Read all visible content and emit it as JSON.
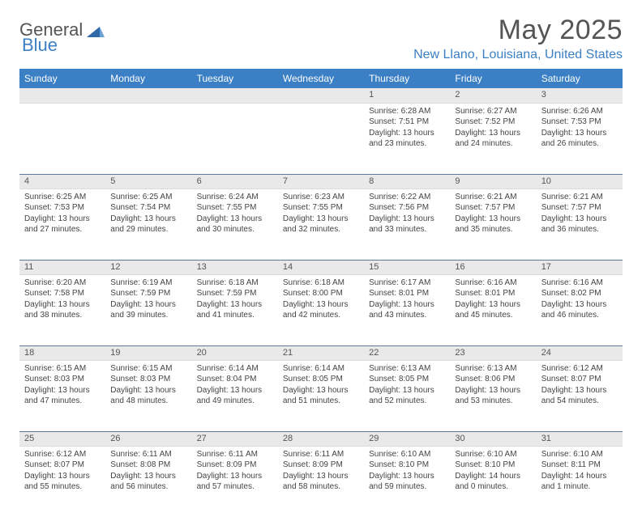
{
  "logo": {
    "text1": "General",
    "text2": "Blue"
  },
  "title": "May 2025",
  "location": "New Llano, Louisiana, United States",
  "colors": {
    "brand_blue": "#3b7fc4",
    "header_bg": "#3b7fc4",
    "header_text": "#ffffff",
    "daynum_bg": "#e9e9e9",
    "row_divider": "#5a7aa0",
    "body_text": "#444444",
    "title_text": "#555555"
  },
  "typography": {
    "title_fontsize": 34,
    "location_fontsize": 16,
    "header_fontsize": 12,
    "daynum_fontsize": 11,
    "cell_fontsize": 10
  },
  "weekdays": [
    "Sunday",
    "Monday",
    "Tuesday",
    "Wednesday",
    "Thursday",
    "Friday",
    "Saturday"
  ],
  "weeks": [
    [
      null,
      null,
      null,
      null,
      {
        "n": "1",
        "sr": "Sunrise: 6:28 AM",
        "ss": "Sunset: 7:51 PM",
        "dl": "Daylight: 13 hours and 23 minutes."
      },
      {
        "n": "2",
        "sr": "Sunrise: 6:27 AM",
        "ss": "Sunset: 7:52 PM",
        "dl": "Daylight: 13 hours and 24 minutes."
      },
      {
        "n": "3",
        "sr": "Sunrise: 6:26 AM",
        "ss": "Sunset: 7:53 PM",
        "dl": "Daylight: 13 hours and 26 minutes."
      }
    ],
    [
      {
        "n": "4",
        "sr": "Sunrise: 6:25 AM",
        "ss": "Sunset: 7:53 PM",
        "dl": "Daylight: 13 hours and 27 minutes."
      },
      {
        "n": "5",
        "sr": "Sunrise: 6:25 AM",
        "ss": "Sunset: 7:54 PM",
        "dl": "Daylight: 13 hours and 29 minutes."
      },
      {
        "n": "6",
        "sr": "Sunrise: 6:24 AM",
        "ss": "Sunset: 7:55 PM",
        "dl": "Daylight: 13 hours and 30 minutes."
      },
      {
        "n": "7",
        "sr": "Sunrise: 6:23 AM",
        "ss": "Sunset: 7:55 PM",
        "dl": "Daylight: 13 hours and 32 minutes."
      },
      {
        "n": "8",
        "sr": "Sunrise: 6:22 AM",
        "ss": "Sunset: 7:56 PM",
        "dl": "Daylight: 13 hours and 33 minutes."
      },
      {
        "n": "9",
        "sr": "Sunrise: 6:21 AM",
        "ss": "Sunset: 7:57 PM",
        "dl": "Daylight: 13 hours and 35 minutes."
      },
      {
        "n": "10",
        "sr": "Sunrise: 6:21 AM",
        "ss": "Sunset: 7:57 PM",
        "dl": "Daylight: 13 hours and 36 minutes."
      }
    ],
    [
      {
        "n": "11",
        "sr": "Sunrise: 6:20 AM",
        "ss": "Sunset: 7:58 PM",
        "dl": "Daylight: 13 hours and 38 minutes."
      },
      {
        "n": "12",
        "sr": "Sunrise: 6:19 AM",
        "ss": "Sunset: 7:59 PM",
        "dl": "Daylight: 13 hours and 39 minutes."
      },
      {
        "n": "13",
        "sr": "Sunrise: 6:18 AM",
        "ss": "Sunset: 7:59 PM",
        "dl": "Daylight: 13 hours and 41 minutes."
      },
      {
        "n": "14",
        "sr": "Sunrise: 6:18 AM",
        "ss": "Sunset: 8:00 PM",
        "dl": "Daylight: 13 hours and 42 minutes."
      },
      {
        "n": "15",
        "sr": "Sunrise: 6:17 AM",
        "ss": "Sunset: 8:01 PM",
        "dl": "Daylight: 13 hours and 43 minutes."
      },
      {
        "n": "16",
        "sr": "Sunrise: 6:16 AM",
        "ss": "Sunset: 8:01 PM",
        "dl": "Daylight: 13 hours and 45 minutes."
      },
      {
        "n": "17",
        "sr": "Sunrise: 6:16 AM",
        "ss": "Sunset: 8:02 PM",
        "dl": "Daylight: 13 hours and 46 minutes."
      }
    ],
    [
      {
        "n": "18",
        "sr": "Sunrise: 6:15 AM",
        "ss": "Sunset: 8:03 PM",
        "dl": "Daylight: 13 hours and 47 minutes."
      },
      {
        "n": "19",
        "sr": "Sunrise: 6:15 AM",
        "ss": "Sunset: 8:03 PM",
        "dl": "Daylight: 13 hours and 48 minutes."
      },
      {
        "n": "20",
        "sr": "Sunrise: 6:14 AM",
        "ss": "Sunset: 8:04 PM",
        "dl": "Daylight: 13 hours and 49 minutes."
      },
      {
        "n": "21",
        "sr": "Sunrise: 6:14 AM",
        "ss": "Sunset: 8:05 PM",
        "dl": "Daylight: 13 hours and 51 minutes."
      },
      {
        "n": "22",
        "sr": "Sunrise: 6:13 AM",
        "ss": "Sunset: 8:05 PM",
        "dl": "Daylight: 13 hours and 52 minutes."
      },
      {
        "n": "23",
        "sr": "Sunrise: 6:13 AM",
        "ss": "Sunset: 8:06 PM",
        "dl": "Daylight: 13 hours and 53 minutes."
      },
      {
        "n": "24",
        "sr": "Sunrise: 6:12 AM",
        "ss": "Sunset: 8:07 PM",
        "dl": "Daylight: 13 hours and 54 minutes."
      }
    ],
    [
      {
        "n": "25",
        "sr": "Sunrise: 6:12 AM",
        "ss": "Sunset: 8:07 PM",
        "dl": "Daylight: 13 hours and 55 minutes."
      },
      {
        "n": "26",
        "sr": "Sunrise: 6:11 AM",
        "ss": "Sunset: 8:08 PM",
        "dl": "Daylight: 13 hours and 56 minutes."
      },
      {
        "n": "27",
        "sr": "Sunrise: 6:11 AM",
        "ss": "Sunset: 8:09 PM",
        "dl": "Daylight: 13 hours and 57 minutes."
      },
      {
        "n": "28",
        "sr": "Sunrise: 6:11 AM",
        "ss": "Sunset: 8:09 PM",
        "dl": "Daylight: 13 hours and 58 minutes."
      },
      {
        "n": "29",
        "sr": "Sunrise: 6:10 AM",
        "ss": "Sunset: 8:10 PM",
        "dl": "Daylight: 13 hours and 59 minutes."
      },
      {
        "n": "30",
        "sr": "Sunrise: 6:10 AM",
        "ss": "Sunset: 8:10 PM",
        "dl": "Daylight: 14 hours and 0 minutes."
      },
      {
        "n": "31",
        "sr": "Sunrise: 6:10 AM",
        "ss": "Sunset: 8:11 PM",
        "dl": "Daylight: 14 hours and 1 minute."
      }
    ]
  ]
}
